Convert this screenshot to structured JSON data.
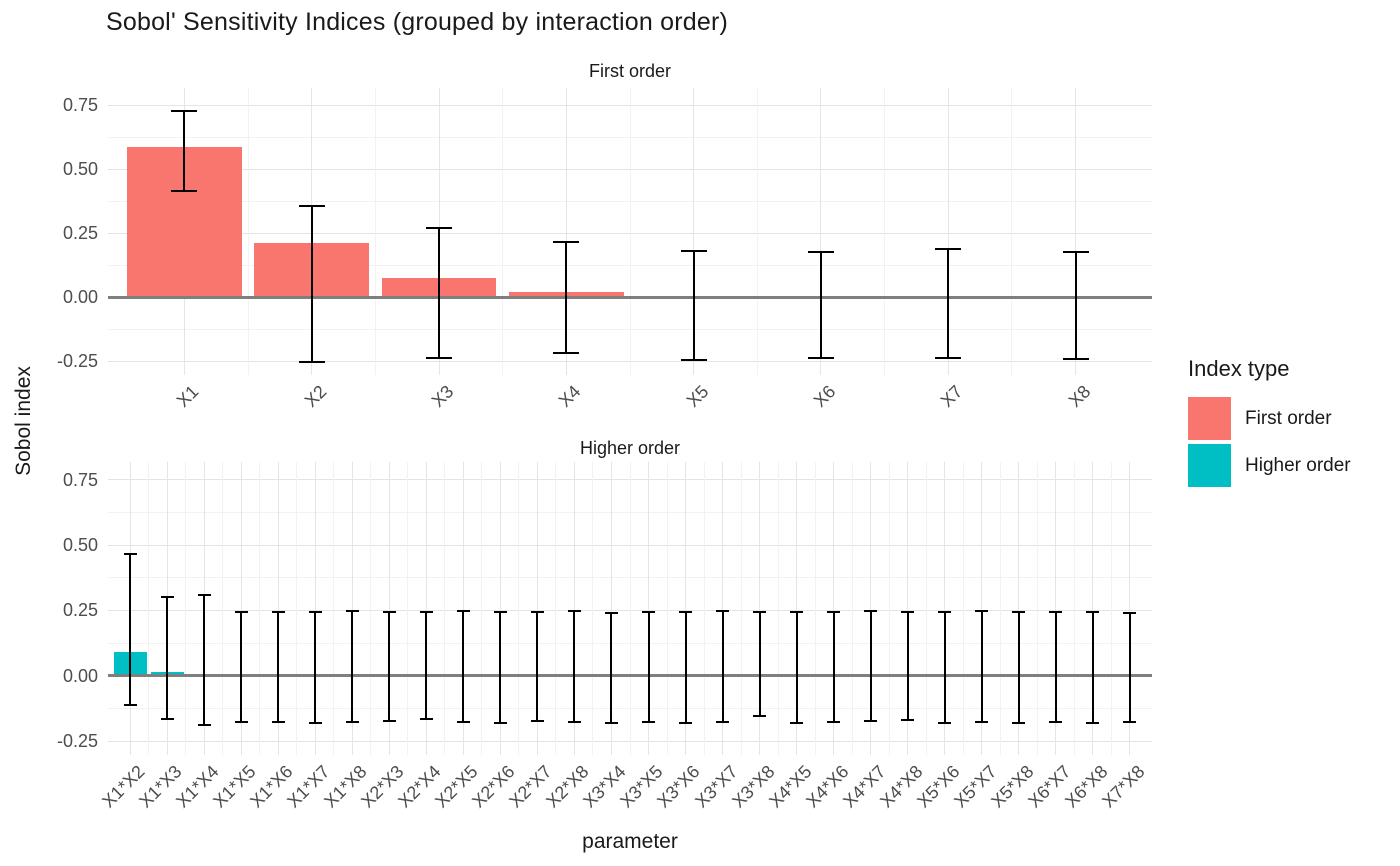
{
  "title": "Sobol' Sensitivity Indices (grouped by interaction order)",
  "y_axis": {
    "label": "Sobol index",
    "ticks": [
      "0.75",
      "0.50",
      "0.25",
      "0.00",
      "-0.25"
    ],
    "tick_values": [
      0.75,
      0.5,
      0.25,
      0,
      -0.25
    ]
  },
  "x_axis": {
    "label": "parameter"
  },
  "legend": {
    "title": "Index type",
    "items": [
      {
        "label": "First order",
        "color": "#F8766D"
      },
      {
        "label": "Higher order",
        "color": "#00BFC4"
      }
    ]
  },
  "style": {
    "grid_major": "#e4e4e4",
    "grid_minor": "#f2f2f2",
    "zero_line": "#7f7f7f",
    "error_bar": "#000000",
    "tick_text": "#4d4d4d",
    "text": "#1a1a1a",
    "background": "#ffffff"
  },
  "chart_data": [
    {
      "type": "bar",
      "facet": "First order",
      "series": "First order",
      "color": "#F8766D",
      "title": "First order",
      "xlabel": "parameter",
      "ylabel": "Sobol index",
      "ylim": [
        -0.303,
        0.818
      ],
      "categories": [
        "X1",
        "X2",
        "X3",
        "X4",
        "X5",
        "X6",
        "X7",
        "X8"
      ],
      "values": [
        0.589,
        0.214,
        0.077,
        0.023,
        0.003,
        0.002,
        0.005,
        0.002
      ],
      "error_low": [
        0.417,
        -0.254,
        -0.236,
        -0.218,
        -0.244,
        -0.238,
        -0.236,
        -0.242
      ],
      "error_high": [
        0.729,
        0.357,
        0.271,
        0.217,
        0.183,
        0.176,
        0.188,
        0.177
      ]
    },
    {
      "type": "bar",
      "facet": "Higher order",
      "series": "Higher order",
      "color": "#00BFC4",
      "title": "Higher order",
      "xlabel": "parameter",
      "ylabel": "Sobol index",
      "ylim": [
        -0.303,
        0.818
      ],
      "categories": [
        "X1*X2",
        "X1*X3",
        "X1*X4",
        "X1*X5",
        "X1*X6",
        "X1*X7",
        "X1*X8",
        "X2*X3",
        "X2*X4",
        "X2*X5",
        "X2*X6",
        "X2*X7",
        "X2*X8",
        "X3*X4",
        "X3*X5",
        "X3*X6",
        "X3*X7",
        "X3*X8",
        "X4*X5",
        "X4*X6",
        "X4*X7",
        "X4*X8",
        "X5*X6",
        "X5*X7",
        "X5*X8",
        "X6*X7",
        "X6*X8",
        "X7*X8"
      ],
      "values": [
        0.092,
        0.013,
        -0.001,
        -0.006,
        0.001,
        -0.002,
        0.002,
        0.003,
        -0.002,
        0.001,
        0.002,
        -0.001,
        0.001,
        0.002,
        -0.001,
        0.001,
        0.002,
        0.001,
        -0.002,
        0.001,
        0.002,
        -0.001,
        0.003,
        0.001,
        -0.002,
        0.001,
        0.002,
        0.001
      ],
      "error_low": [
        -0.11,
        -0.164,
        -0.187,
        -0.178,
        -0.176,
        -0.181,
        -0.178,
        -0.172,
        -0.165,
        -0.176,
        -0.18,
        -0.174,
        -0.178,
        -0.182,
        -0.176,
        -0.18,
        -0.175,
        -0.152,
        -0.18,
        -0.176,
        -0.172,
        -0.168,
        -0.18,
        -0.176,
        -0.182,
        -0.178,
        -0.18,
        -0.177
      ],
      "error_high": [
        0.465,
        0.303,
        0.31,
        0.243,
        0.246,
        0.244,
        0.248,
        0.245,
        0.243,
        0.247,
        0.244,
        0.246,
        0.248,
        0.239,
        0.246,
        0.243,
        0.247,
        0.245,
        0.246,
        0.244,
        0.248,
        0.245,
        0.243,
        0.247,
        0.245,
        0.246,
        0.244,
        0.24
      ]
    }
  ]
}
